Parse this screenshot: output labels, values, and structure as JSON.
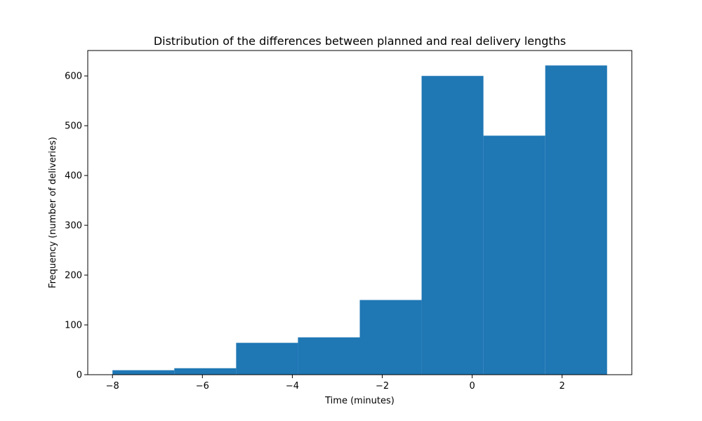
{
  "chart_data": {
    "type": "bar",
    "title": "Distribution of the differences between planned and real delivery lengths",
    "xlabel": "Time (minutes)",
    "ylabel": "Frequency (number of deliveries)",
    "xlim": [
      -8.55,
      3.55
    ],
    "ylim": [
      0,
      651
    ],
    "x_ticks": [
      -8,
      -6,
      -4,
      -2,
      0,
      2
    ],
    "x_tick_labels": [
      "−8",
      "−6",
      "−4",
      "−2",
      "0",
      "2"
    ],
    "y_ticks": [
      0,
      100,
      200,
      300,
      400,
      500,
      600
    ],
    "y_tick_labels": [
      "0",
      "100",
      "200",
      "300",
      "400",
      "500",
      "600"
    ],
    "bin_edges": [
      -8.0,
      -6.625,
      -5.25,
      -3.875,
      -2.5,
      -1.125,
      0.25,
      1.625,
      3.0
    ],
    "values": [
      9,
      13,
      64,
      75,
      150,
      600,
      480,
      621
    ],
    "bar_color": "#1f77b4",
    "grid": false,
    "legend": "none"
  }
}
